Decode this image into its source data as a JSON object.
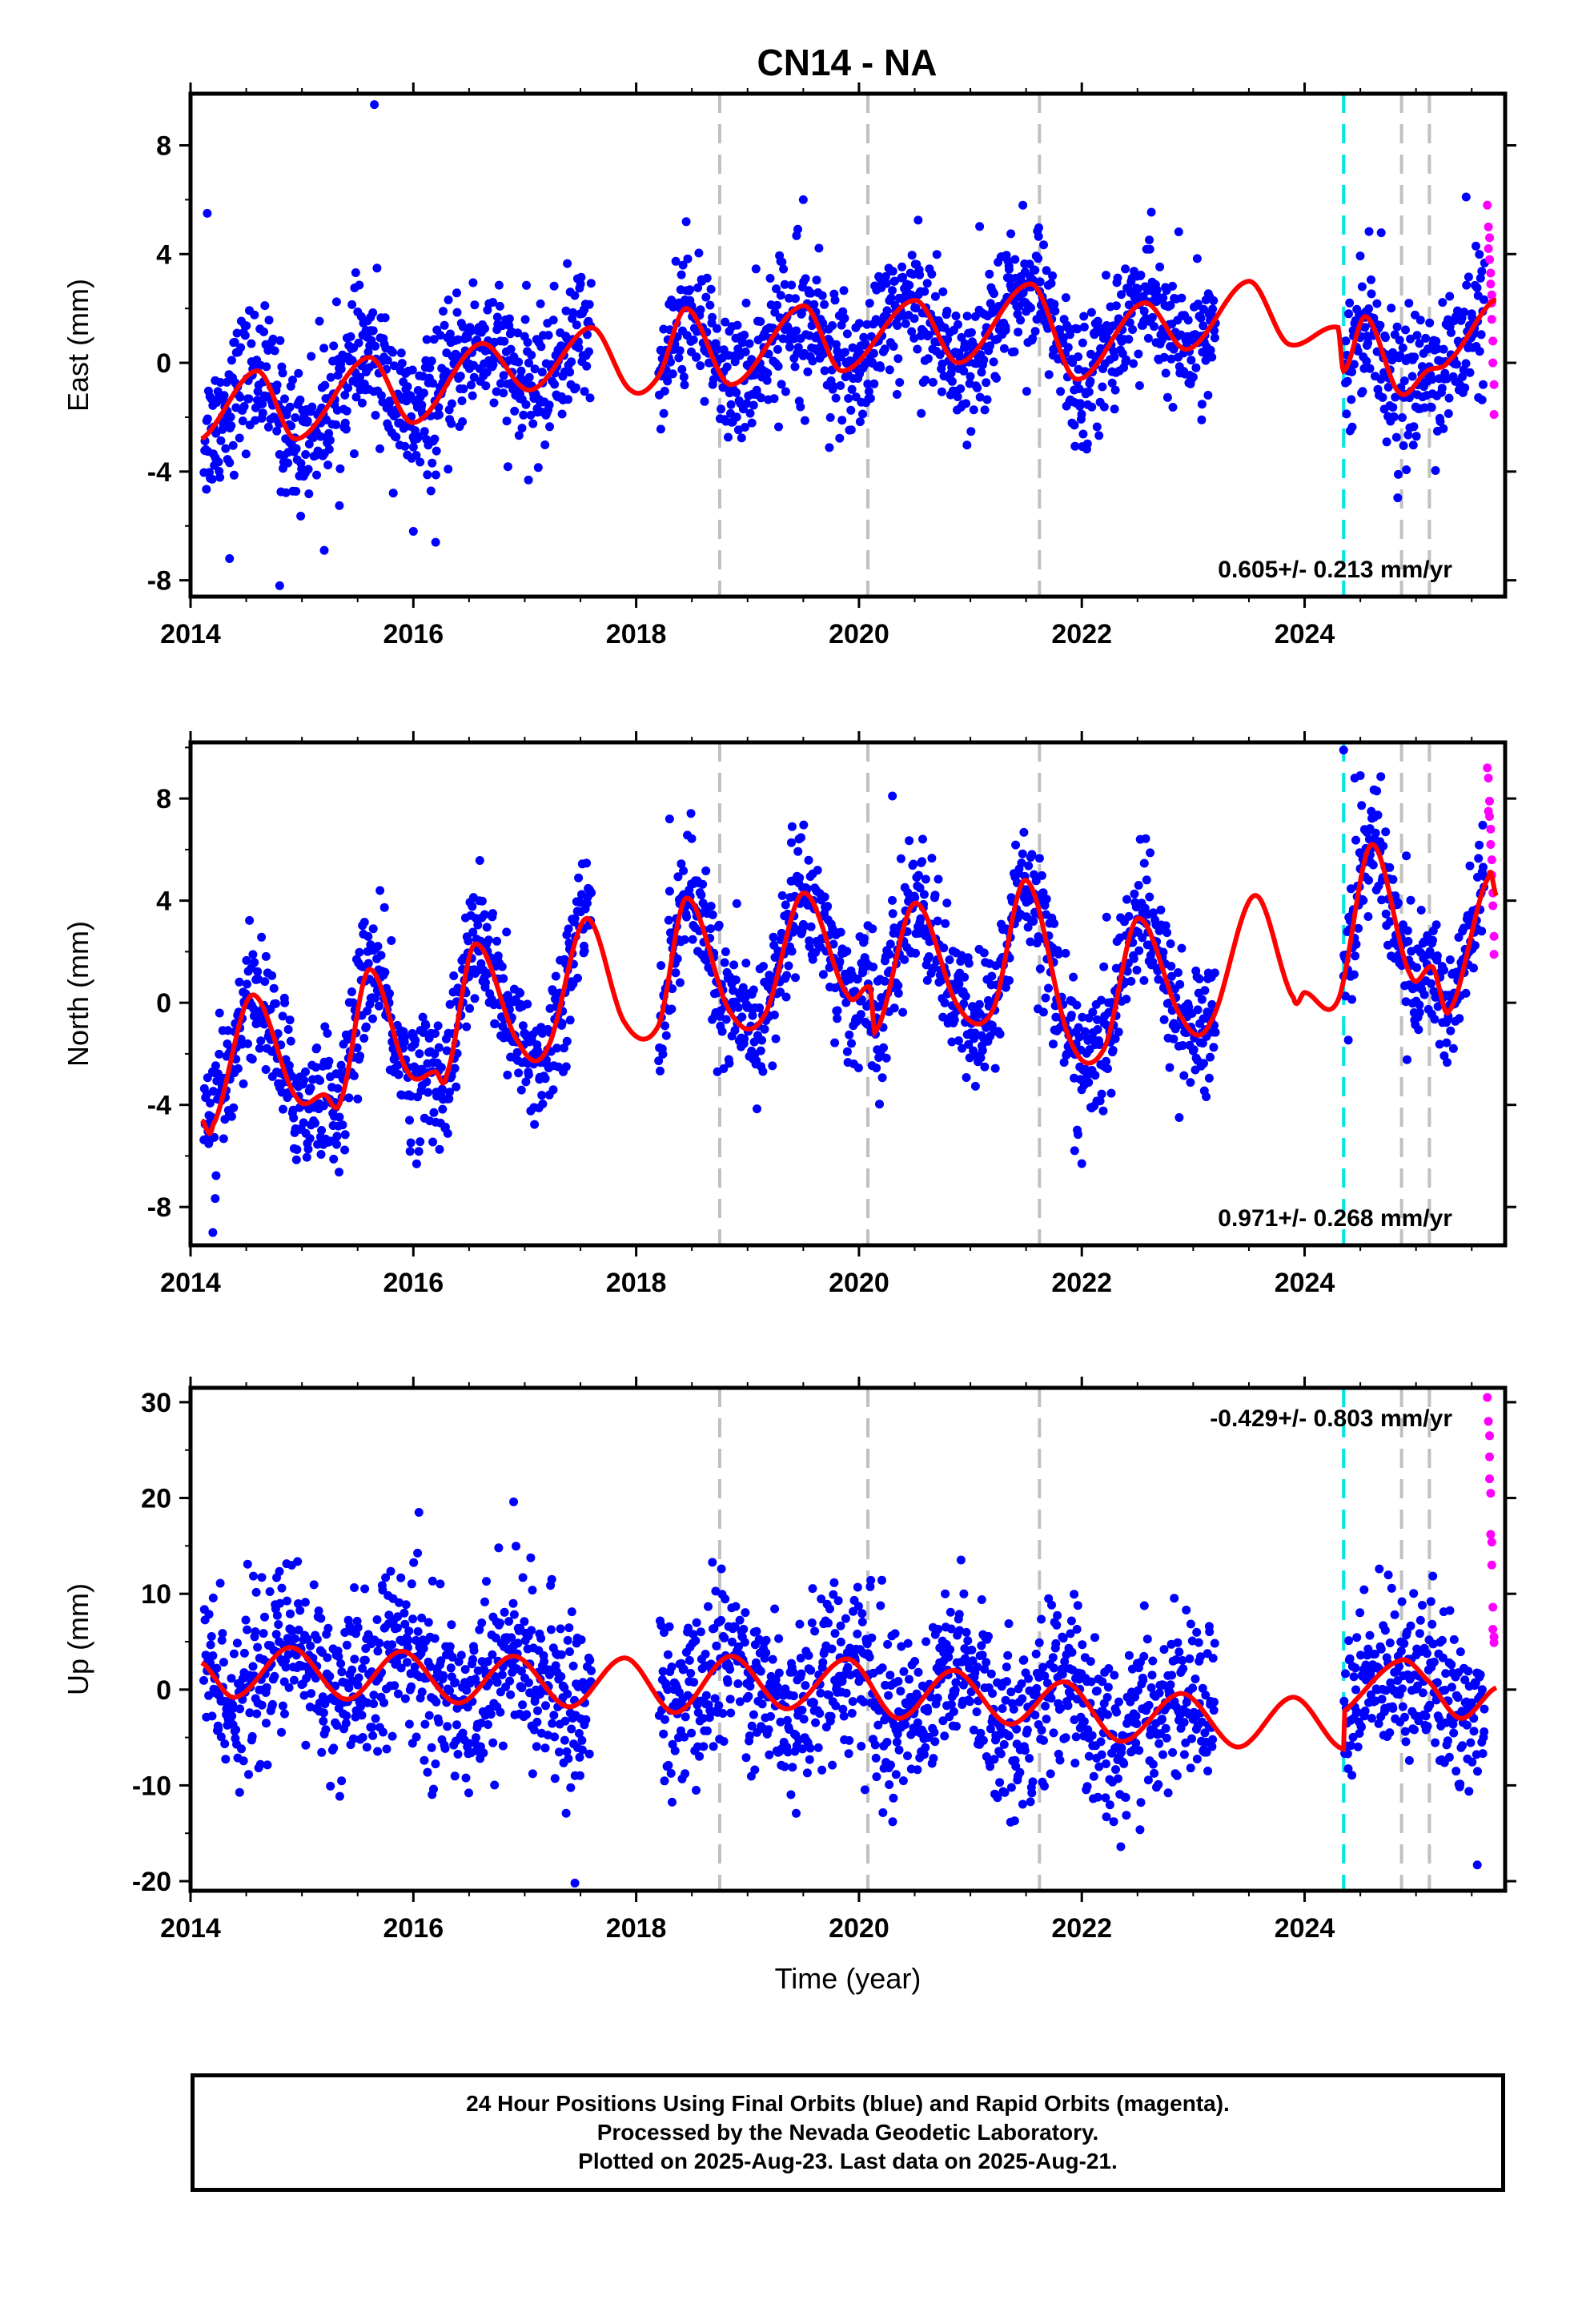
{
  "page": {
    "title": "CN14 - NA",
    "footer": [
      "24 Hour Positions Using Final Orbits (blue) and Rapid Orbits (magenta).",
      "Processed by the Nevada Geodetic Laboratory.",
      "Plotted on 2025-Aug-23. Last data on 2025-Aug-21."
    ]
  },
  "colors": {
    "final": "#0000ff",
    "rapid": "#ff00ff",
    "model": "#ff0000",
    "equipment_change": "#c0c0c0",
    "earthquake": "#00e5e5"
  },
  "chart_data": [
    {
      "type": "scatter",
      "component": "east",
      "ylabel": "East (mm)",
      "xlabel": "",
      "xlim": [
        2014.0,
        2025.8
      ],
      "ylim": [
        -8.6,
        9.9
      ],
      "yticks": [
        -8,
        -4,
        0,
        4,
        8
      ],
      "xticks": [
        2014,
        2016,
        2018,
        2020,
        2022,
        2024
      ],
      "rate_text": "0.605+/- 0.213 mm/yr",
      "rate_position": "bottom-right",
      "vlines_gray": [
        2018.75,
        2020.08,
        2021.62,
        2024.87,
        2025.12
      ],
      "vlines_cyan": [
        2024.35
      ],
      "gaps": [
        [
          2017.6,
          2018.2
        ],
        [
          2023.2,
          2024.35
        ]
      ],
      "model_fit": {
        "trend_at_2014": -2.5,
        "rate": 0.36,
        "seasonal_amp": 1.1,
        "seasonal_phase_peak": 0.6,
        "knots": [
          [
            2014.1,
            -2.8
          ],
          [
            2014.6,
            -0.3
          ],
          [
            2014.95,
            -2.8
          ],
          [
            2015.6,
            0.2
          ],
          [
            2016.0,
            -2.2
          ],
          [
            2016.6,
            0.7
          ],
          [
            2017.05,
            -1.0
          ],
          [
            2017.6,
            1.3
          ],
          [
            2017.95,
            -1.0
          ],
          [
            2018.2,
            -0.5
          ],
          [
            2018.45,
            2.0
          ],
          [
            2018.85,
            -0.8
          ],
          [
            2019.5,
            2.1
          ],
          [
            2019.85,
            -0.3
          ],
          [
            2020.5,
            2.3
          ],
          [
            2020.9,
            0.0
          ],
          [
            2021.55,
            2.9
          ],
          [
            2021.95,
            -0.6
          ],
          [
            2022.55,
            2.2
          ],
          [
            2022.95,
            0.5
          ],
          [
            2023.5,
            3.0
          ],
          [
            2023.85,
            0.7
          ],
          [
            2024.3,
            1.3
          ],
          [
            2024.35,
            -0.3
          ],
          [
            2024.55,
            1.7
          ],
          [
            2024.85,
            -1.1
          ],
          [
            2025.1,
            -0.3
          ],
          [
            2025.3,
            0.1
          ],
          [
            2025.7,
            2.3
          ]
        ]
      },
      "final_stats": {
        "count": 2200,
        "spread": 1.25
      },
      "rapid_points": [
        [
          2025.64,
          5.8
        ],
        [
          2025.65,
          5.0
        ],
        [
          2025.66,
          4.6
        ],
        [
          2025.66,
          3.8
        ],
        [
          2025.67,
          3.3
        ],
        [
          2025.67,
          2.9
        ],
        [
          2025.68,
          2.2
        ],
        [
          2025.68,
          1.6
        ],
        [
          2025.69,
          0.8
        ],
        [
          2025.69,
          0.0
        ],
        [
          2025.7,
          -0.8
        ],
        [
          2025.7,
          -1.9
        ],
        [
          2025.65,
          4.2
        ],
        [
          2025.68,
          2.5
        ]
      ],
      "outliers": [
        [
          2015.65,
          9.5
        ],
        [
          2014.15,
          5.5
        ],
        [
          2019.5,
          6.0
        ],
        [
          2014.8,
          -8.2
        ],
        [
          2014.35,
          -7.2
        ],
        [
          2015.2,
          -6.9
        ],
        [
          2016.2,
          -6.6
        ],
        [
          2016.0,
          -6.2
        ],
        [
          2025.45,
          6.1
        ]
      ]
    },
    {
      "type": "scatter",
      "component": "north",
      "ylabel": "North (mm)",
      "xlabel": "",
      "xlim": [
        2014.0,
        2025.8
      ],
      "ylim": [
        -9.5,
        10.2
      ],
      "yticks": [
        -8,
        -4,
        0,
        4,
        8
      ],
      "xticks": [
        2014,
        2016,
        2018,
        2020,
        2022,
        2024
      ],
      "rate_text": "0.971+/- 0.268 mm/yr",
      "rate_position": "bottom-right",
      "vlines_gray": [
        2018.75,
        2020.08,
        2021.62,
        2024.87,
        2025.12
      ],
      "vlines_cyan": [
        2024.35
      ],
      "gaps": [
        [
          2017.6,
          2018.2
        ],
        [
          2023.2,
          2024.35
        ]
      ],
      "model_fit": {
        "knots": [
          [
            2014.1,
            -4.6
          ],
          [
            2014.2,
            -4.8
          ],
          [
            2014.55,
            0.3
          ],
          [
            2014.95,
            -3.7
          ],
          [
            2015.2,
            -3.6
          ],
          [
            2015.35,
            -3.8
          ],
          [
            2015.6,
            1.3
          ],
          [
            2015.95,
            -2.7
          ],
          [
            2016.2,
            -2.7
          ],
          [
            2016.3,
            -2.8
          ],
          [
            2016.55,
            2.3
          ],
          [
            2016.95,
            -1.6
          ],
          [
            2017.2,
            -1.8
          ],
          [
            2017.55,
            3.3
          ],
          [
            2017.9,
            -0.8
          ],
          [
            2018.2,
            -0.9
          ],
          [
            2018.45,
            4.1
          ],
          [
            2018.85,
            -0.4
          ],
          [
            2019.15,
            -0.5
          ],
          [
            2019.5,
            4.3
          ],
          [
            2019.9,
            0.3
          ],
          [
            2020.1,
            0.6
          ],
          [
            2020.15,
            -1.1
          ],
          [
            2020.5,
            3.9
          ],
          [
            2020.9,
            -0.2
          ],
          [
            2021.2,
            -0.3
          ],
          [
            2021.5,
            4.8
          ],
          [
            2021.9,
            -1.5
          ],
          [
            2022.2,
            -1.8
          ],
          [
            2022.5,
            3.3
          ],
          [
            2022.9,
            -0.6
          ],
          [
            2023.15,
            -0.8
          ],
          [
            2023.55,
            4.2
          ],
          [
            2023.9,
            0.2
          ],
          [
            2024.0,
            0.4
          ],
          [
            2024.3,
            0.1
          ],
          [
            2024.6,
            6.2
          ],
          [
            2024.95,
            1.1
          ],
          [
            2025.15,
            1.4
          ],
          [
            2025.3,
            -0.3
          ],
          [
            2025.65,
            4.9
          ],
          [
            2025.72,
            4.2
          ]
        ]
      },
      "final_stats": {
        "count": 2200,
        "spread": 1.3
      },
      "rapid_points": [
        [
          2025.64,
          9.2
        ],
        [
          2025.65,
          8.8
        ],
        [
          2025.66,
          7.9
        ],
        [
          2025.66,
          7.3
        ],
        [
          2025.67,
          6.8
        ],
        [
          2025.67,
          6.2
        ],
        [
          2025.68,
          5.6
        ],
        [
          2025.68,
          5.0
        ],
        [
          2025.69,
          4.3
        ],
        [
          2025.69,
          3.8
        ],
        [
          2025.7,
          2.6
        ],
        [
          2025.7,
          1.9
        ],
        [
          2025.65,
          7.5
        ]
      ],
      "outliers": [
        [
          2014.2,
          -9.0
        ],
        [
          2022.0,
          -6.3
        ],
        [
          2024.35,
          9.9
        ],
        [
          2024.45,
          8.8
        ],
        [
          2024.5,
          8.9
        ],
        [
          2019.4,
          6.9
        ],
        [
          2020.3,
          8.1
        ],
        [
          2018.3,
          7.2
        ]
      ]
    },
    {
      "type": "scatter",
      "component": "up",
      "ylabel": "Up (mm)",
      "xlabel": "Time (year)",
      "xlim": [
        2014.0,
        2025.8
      ],
      "ylim": [
        -21.0,
        31.5
      ],
      "yticks": [
        -20,
        -10,
        0,
        10,
        20,
        30
      ],
      "xticks": [
        2014,
        2016,
        2018,
        2020,
        2022,
        2024
      ],
      "rate_text": "-0.429+/- 0.803 mm/yr",
      "rate_position": "top-right",
      "vlines_gray": [
        2018.75,
        2020.08,
        2021.62,
        2024.87,
        2025.12
      ],
      "vlines_cyan": [
        2024.35
      ],
      "gaps": [
        [
          2017.6,
          2018.2
        ],
        [
          2023.2,
          2024.35
        ]
      ],
      "model_fit": {
        "knots": [
          [
            2014.1,
            2.8
          ],
          [
            2014.4,
            -0.8
          ],
          [
            2014.9,
            4.4
          ],
          [
            2015.4,
            -1.0
          ],
          [
            2015.9,
            4.0
          ],
          [
            2016.4,
            -1.4
          ],
          [
            2016.9,
            3.5
          ],
          [
            2017.4,
            -1.8
          ],
          [
            2017.9,
            3.3
          ],
          [
            2018.35,
            -2.4
          ],
          [
            2018.85,
            3.5
          ],
          [
            2019.35,
            -2.0
          ],
          [
            2019.9,
            3.2
          ],
          [
            2020.35,
            -3.0
          ],
          [
            2020.85,
            2.0
          ],
          [
            2021.35,
            -3.6
          ],
          [
            2021.85,
            0.8
          ],
          [
            2022.35,
            -5.4
          ],
          [
            2022.9,
            -0.4
          ],
          [
            2023.4,
            -6.0
          ],
          [
            2023.9,
            -0.8
          ],
          [
            2024.35,
            -6.2
          ],
          [
            2024.35,
            -2.3
          ],
          [
            2024.85,
            3.0
          ],
          [
            2025.1,
            1.0
          ],
          [
            2025.4,
            -3.0
          ],
          [
            2025.72,
            0.2
          ]
        ]
      },
      "final_stats": {
        "count": 2200,
        "spread": 4.4
      },
      "rapid_points": [
        [
          2025.64,
          30.5
        ],
        [
          2025.65,
          28.0
        ],
        [
          2025.66,
          24.3
        ],
        [
          2025.66,
          22.0
        ],
        [
          2025.67,
          20.5
        ],
        [
          2025.67,
          16.2
        ],
        [
          2025.68,
          15.4
        ],
        [
          2025.68,
          13.0
        ],
        [
          2025.69,
          8.6
        ],
        [
          2025.69,
          6.3
        ],
        [
          2025.7,
          5.5
        ],
        [
          2025.7,
          4.9
        ],
        [
          2025.66,
          26.5
        ]
      ],
      "outliers": [
        [
          2016.9,
          19.6
        ],
        [
          2016.05,
          18.5
        ],
        [
          2017.45,
          -20.2
        ],
        [
          2025.55,
          -18.3
        ],
        [
          2022.35,
          -16.4
        ]
      ]
    }
  ]
}
